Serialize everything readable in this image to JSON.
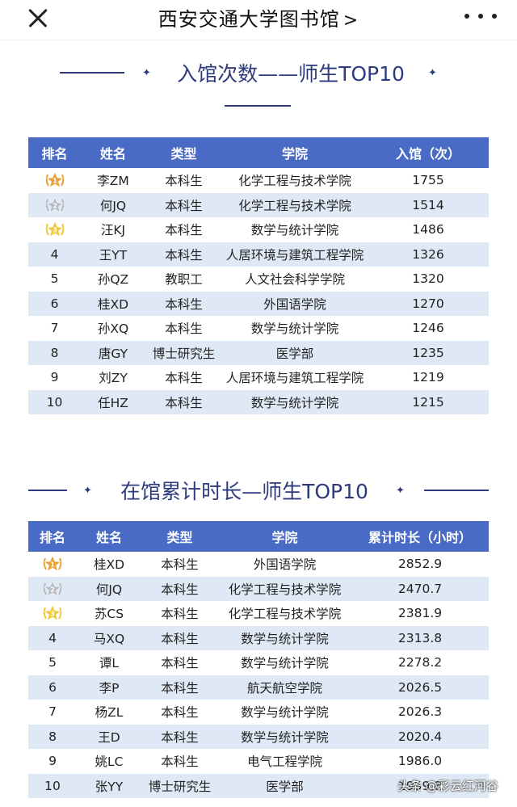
{
  "header": {
    "title": "西安交通大学图书馆",
    "chevron_icon": "chevron-right-icon",
    "close_icon": "close-icon",
    "more_icon": "more-dots-icon"
  },
  "section1": {
    "title": "入馆次数——师生TOP10",
    "columns": [
      "排名",
      "姓名",
      "类型",
      "学院",
      "入馆（次）"
    ],
    "rows": [
      {
        "rank": "",
        "medal": "gold",
        "name": "李ZM",
        "type": "本科生",
        "college": "化学工程与技术学院",
        "value": "1755"
      },
      {
        "rank": "",
        "medal": "silver",
        "name": "何JQ",
        "type": "本科生",
        "college": "化学工程与技术学院",
        "value": "1514"
      },
      {
        "rank": "",
        "medal": "bronze",
        "name": "汪KJ",
        "type": "本科生",
        "college": "数学与统计学院",
        "value": "1486"
      },
      {
        "rank": "4",
        "medal": "",
        "name": "王YT",
        "type": "本科生",
        "college": "人居环境与建筑工程学院",
        "value": "1326"
      },
      {
        "rank": "5",
        "medal": "",
        "name": "孙QZ",
        "type": "教职工",
        "college": "人文社会科学学院",
        "value": "1320"
      },
      {
        "rank": "6",
        "medal": "",
        "name": "桂XD",
        "type": "本科生",
        "college": "外国语学院",
        "value": "1270"
      },
      {
        "rank": "7",
        "medal": "",
        "name": "孙XQ",
        "type": "本科生",
        "college": "数学与统计学院",
        "value": "1246"
      },
      {
        "rank": "8",
        "medal": "",
        "name": "唐GY",
        "type": "博士研究生",
        "college": "医学部",
        "value": "1235"
      },
      {
        "rank": "9",
        "medal": "",
        "name": "刘ZY",
        "type": "本科生",
        "college": "人居环境与建筑工程学院",
        "value": "1219"
      },
      {
        "rank": "10",
        "medal": "",
        "name": "任HZ",
        "type": "本科生",
        "college": "数学与统计学院",
        "value": "1215"
      }
    ]
  },
  "section2": {
    "title": "在馆累计时长—师生TOP10",
    "columns": [
      "排名",
      "姓名",
      "类型",
      "学院",
      "累计时长（小时）"
    ],
    "rows": [
      {
        "rank": "",
        "medal": "gold",
        "name": "桂XD",
        "type": "本科生",
        "college": "外国语学院",
        "value": "2852.9"
      },
      {
        "rank": "",
        "medal": "silver",
        "name": "何JQ",
        "type": "本科生",
        "college": "化学工程与技术学院",
        "value": "2470.7"
      },
      {
        "rank": "",
        "medal": "bronze",
        "name": "苏CS",
        "type": "本科生",
        "college": "化学工程与技术学院",
        "value": "2381.9"
      },
      {
        "rank": "4",
        "medal": "",
        "name": "马XQ",
        "type": "本科生",
        "college": "数学与统计学院",
        "value": "2313.8"
      },
      {
        "rank": "5",
        "medal": "",
        "name": "谭L",
        "type": "本科生",
        "college": "数学与统计学院",
        "value": "2278.2"
      },
      {
        "rank": "6",
        "medal": "",
        "name": "李P",
        "type": "本科生",
        "college": "航天航空学院",
        "value": "2026.5"
      },
      {
        "rank": "7",
        "medal": "",
        "name": "杨ZL",
        "type": "本科生",
        "college": "数学与统计学院",
        "value": "2026.3"
      },
      {
        "rank": "8",
        "medal": "",
        "name": "王D",
        "type": "本科生",
        "college": "数学与统计学院",
        "value": "2020.4"
      },
      {
        "rank": "9",
        "medal": "",
        "name": "姚LC",
        "type": "本科生",
        "college": "电气工程学院",
        "value": "1986.0"
      },
      {
        "rank": "10",
        "medal": "",
        "name": "张YY",
        "type": "博士研究生",
        "college": "医学部",
        "value": "1959.8"
      }
    ]
  },
  "watermark": "头条 @彩云红河谷",
  "colors": {
    "header_bg": "#4a6bc5",
    "row_alt": "#dfe8f5",
    "title": "#2d3a7c",
    "gold": "#e8a23a",
    "silver": "#b8bcc4",
    "bronze": "#f0c93a"
  }
}
